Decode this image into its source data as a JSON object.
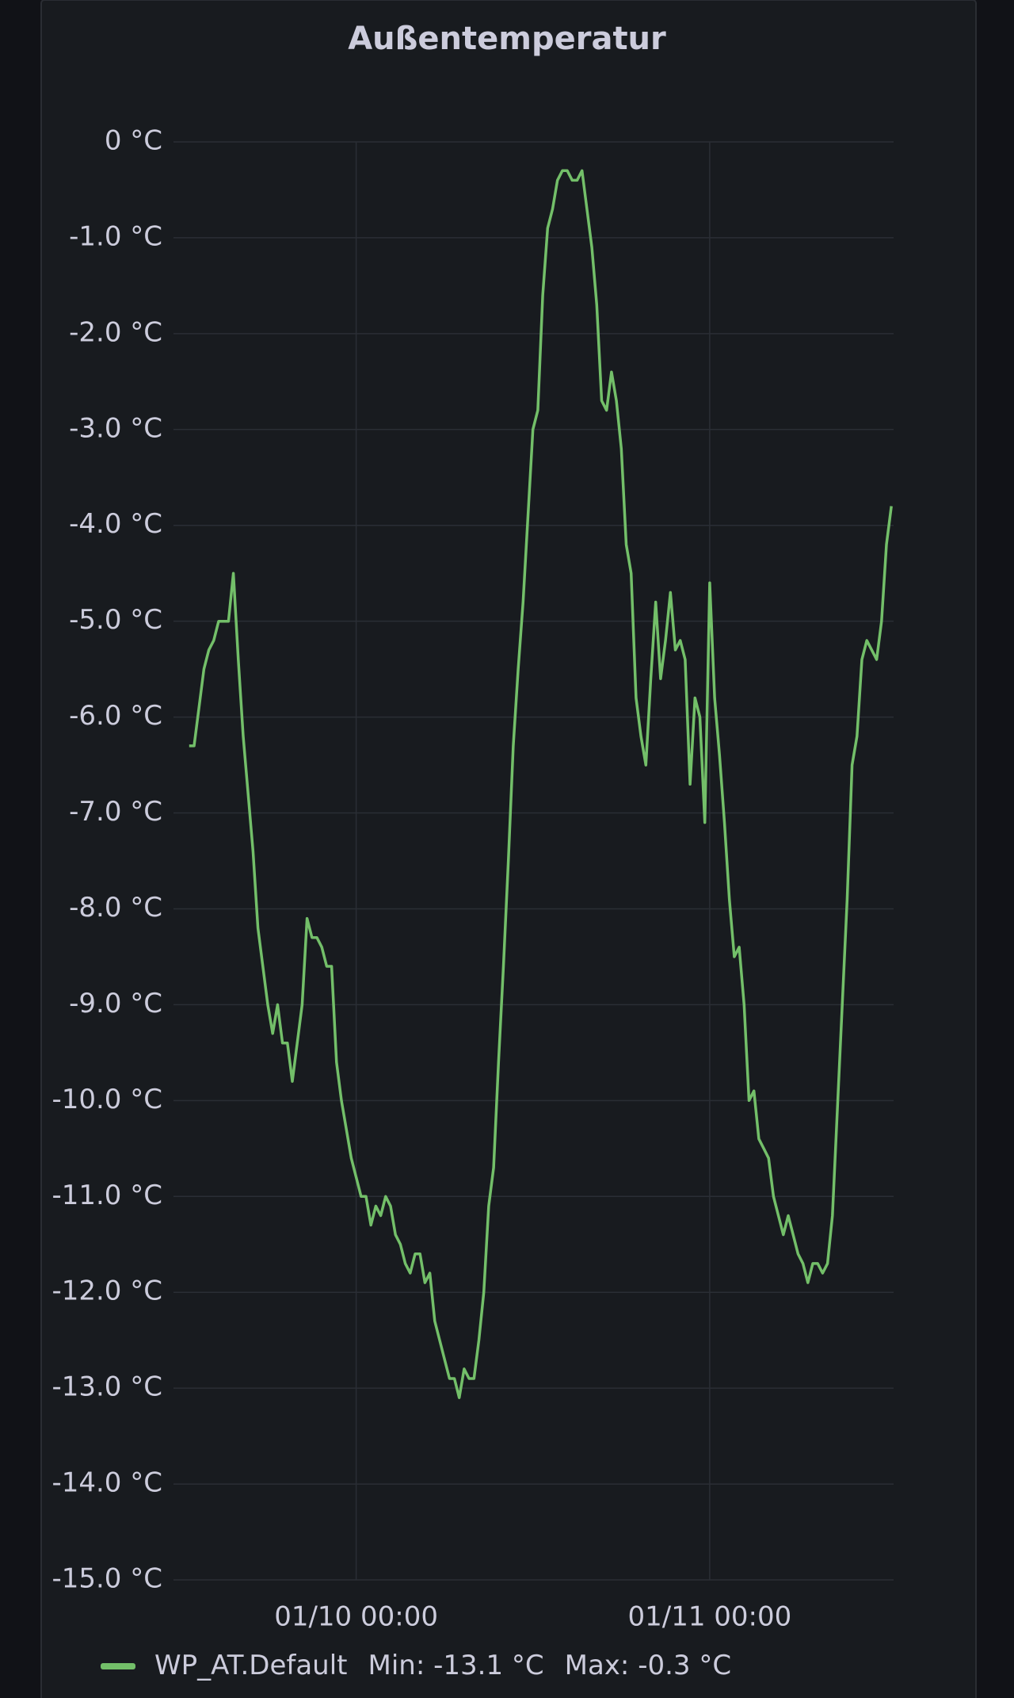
{
  "chart_data": {
    "type": "line",
    "title": "Außentemperatur",
    "x": [
      "01/09 12:40",
      "01/09 13:00",
      "01/09 13:20",
      "01/09 13:40",
      "01/09 14:00",
      "01/09 14:20",
      "01/09 14:40",
      "01/09 15:00",
      "01/09 15:20",
      "01/09 15:40",
      "01/09 16:00",
      "01/09 16:20",
      "01/09 16:40",
      "01/09 17:00",
      "01/09 17:20",
      "01/09 17:40",
      "01/09 18:00",
      "01/09 18:20",
      "01/09 18:40",
      "01/09 19:00",
      "01/09 19:20",
      "01/09 19:40",
      "01/09 20:00",
      "01/09 20:20",
      "01/09 20:40",
      "01/09 21:00",
      "01/09 21:20",
      "01/09 21:40",
      "01/09 22:00",
      "01/09 22:20",
      "01/09 22:40",
      "01/09 23:00",
      "01/09 23:20",
      "01/09 23:40",
      "01/10 00:00",
      "01/10 00:20",
      "01/10 00:40",
      "01/10 01:00",
      "01/10 01:20",
      "01/10 01:40",
      "01/10 02:00",
      "01/10 02:20",
      "01/10 02:40",
      "01/10 03:00",
      "01/10 03:20",
      "01/10 03:40",
      "01/10 04:00",
      "01/10 04:20",
      "01/10 04:40",
      "01/10 05:00",
      "01/10 05:20",
      "01/10 05:40",
      "01/10 06:00",
      "01/10 06:20",
      "01/10 06:40",
      "01/10 07:00",
      "01/10 07:20",
      "01/10 07:40",
      "01/10 08:00",
      "01/10 08:20",
      "01/10 08:40",
      "01/10 09:00",
      "01/10 09:20",
      "01/10 09:40",
      "01/10 10:00",
      "01/10 10:20",
      "01/10 10:40",
      "01/10 11:00",
      "01/10 11:20",
      "01/10 11:40",
      "01/10 12:00",
      "01/10 12:20",
      "01/10 12:40",
      "01/10 13:00",
      "01/10 13:20",
      "01/10 13:40",
      "01/10 14:00",
      "01/10 14:20",
      "01/10 14:40",
      "01/10 15:00",
      "01/10 15:20",
      "01/10 15:40",
      "01/10 16:00",
      "01/10 16:20",
      "01/10 16:40",
      "01/10 17:00",
      "01/10 17:20",
      "01/10 17:40",
      "01/10 18:00",
      "01/10 18:20",
      "01/10 18:40",
      "01/10 19:00",
      "01/10 19:20",
      "01/10 19:40",
      "01/10 20:00",
      "01/10 20:20",
      "01/10 20:40",
      "01/10 21:00",
      "01/10 21:20",
      "01/10 21:40",
      "01/10 22:00",
      "01/10 22:20",
      "01/10 22:40",
      "01/10 23:00",
      "01/10 23:20",
      "01/10 23:40",
      "01/11 00:00",
      "01/11 00:20",
      "01/11 00:40",
      "01/11 01:00",
      "01/11 01:20",
      "01/11 01:40",
      "01/11 02:00",
      "01/11 02:20",
      "01/11 02:40",
      "01/11 03:00",
      "01/11 03:20",
      "01/11 03:40",
      "01/11 04:00",
      "01/11 04:20",
      "01/11 04:40",
      "01/11 05:00",
      "01/11 05:20",
      "01/11 05:40",
      "01/11 06:00",
      "01/11 06:20",
      "01/11 06:40",
      "01/11 07:00",
      "01/11 07:20",
      "01/11 07:40",
      "01/11 08:00",
      "01/11 08:20",
      "01/11 08:40",
      "01/11 09:00",
      "01/11 09:20",
      "01/11 09:40",
      "01/11 10:00",
      "01/11 10:20",
      "01/11 10:40",
      "01/11 11:00",
      "01/11 11:20",
      "01/11 11:40",
      "01/11 12:00",
      "01/11 12:20"
    ],
    "series": [
      {
        "name": "WP_AT.Default",
        "color": "#73bf69",
        "values": [
          -6.3,
          -6.3,
          -5.9,
          -5.5,
          -5.3,
          -5.2,
          -5.0,
          -5.0,
          -5.0,
          -4.5,
          -5.4,
          -6.2,
          -6.8,
          -7.4,
          -8.2,
          -8.6,
          -9.0,
          -9.3,
          -9.0,
          -9.4,
          -9.4,
          -9.8,
          -9.4,
          -9.0,
          -8.1,
          -8.3,
          -8.3,
          -8.4,
          -8.6,
          -8.6,
          -9.6,
          -10.0,
          -10.3,
          -10.6,
          -10.8,
          -11.0,
          -11.0,
          -11.3,
          -11.1,
          -11.2,
          -11.0,
          -11.1,
          -11.4,
          -11.5,
          -11.7,
          -11.8,
          -11.6,
          -11.6,
          -11.9,
          -11.8,
          -12.3,
          -12.5,
          -12.7,
          -12.9,
          -12.9,
          -13.1,
          -12.8,
          -12.9,
          -12.9,
          -12.5,
          -12.0,
          -11.1,
          -10.7,
          -9.6,
          -8.6,
          -7.5,
          -6.3,
          -5.5,
          -4.8,
          -3.9,
          -3.0,
          -2.8,
          -1.6,
          -0.9,
          -0.7,
          -0.4,
          -0.3,
          -0.3,
          -0.4,
          -0.4,
          -0.3,
          -0.7,
          -1.1,
          -1.7,
          -2.7,
          -2.8,
          -2.4,
          -2.7,
          -3.2,
          -4.2,
          -4.5,
          -5.8,
          -6.2,
          -6.5,
          -5.6,
          -4.8,
          -5.6,
          -5.2,
          -4.7,
          -5.3,
          -5.2,
          -5.4,
          -6.7,
          -5.8,
          -6.0,
          -7.1,
          -4.6,
          -5.8,
          -6.4,
          -7.1,
          -7.9,
          -8.5,
          -8.4,
          -9.0,
          -10.0,
          -9.9,
          -10.4,
          -10.5,
          -10.6,
          -11.0,
          -11.2,
          -11.4,
          -11.2,
          -11.4,
          -11.6,
          -11.7,
          -11.9,
          -11.7,
          -11.7,
          -11.8,
          -11.7,
          -11.2,
          -10.1,
          -9.0,
          -7.9,
          -6.5,
          -6.2,
          -5.4,
          -5.2,
          -5.3,
          -5.4,
          -5.0,
          -4.2,
          -3.8
        ]
      }
    ],
    "legend": [
      "Min: -13.1 °C",
      "Max: -0.3 °C"
    ],
    "xlim": [
      "01/09 11:36",
      "01/11 12:29"
    ],
    "xticks": [
      "01/10 00:00",
      "01/11 00:00"
    ],
    "ylim": [
      -15,
      0
    ],
    "yticks": [
      {
        "value": 0,
        "label": "0 °C"
      },
      {
        "value": -1,
        "label": "-1.0 °C"
      },
      {
        "value": -2,
        "label": "-2.0 °C"
      },
      {
        "value": -3,
        "label": "-3.0 °C"
      },
      {
        "value": -4,
        "label": "-4.0 °C"
      },
      {
        "value": -5,
        "label": "-5.0 °C"
      },
      {
        "value": -6,
        "label": "-6.0 °C"
      },
      {
        "value": -7,
        "label": "-7.0 °C"
      },
      {
        "value": -8,
        "label": "-8.0 °C"
      },
      {
        "value": -9,
        "label": "-9.0 °C"
      },
      {
        "value": -10,
        "label": "-10.0 °C"
      },
      {
        "value": -11,
        "label": "-11.0 °C"
      },
      {
        "value": -12,
        "label": "-12.0 °C"
      },
      {
        "value": -13,
        "label": "-13.0 °C"
      },
      {
        "value": -14,
        "label": "-14.0 °C"
      },
      {
        "value": -15,
        "label": "-15.0 °C"
      }
    ],
    "grid": true
  }
}
